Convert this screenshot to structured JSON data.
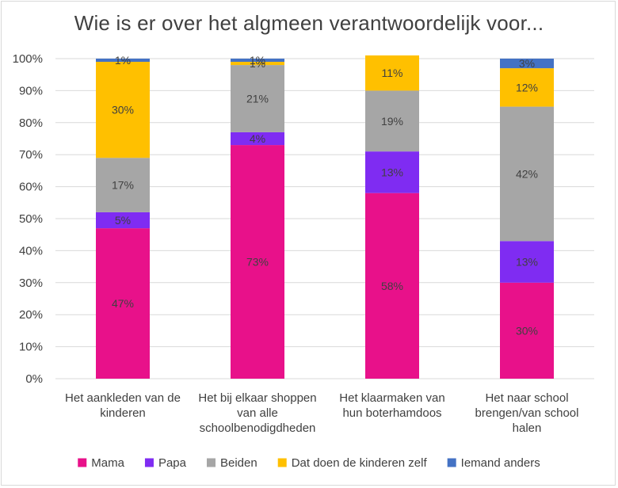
{
  "chart_data": {
    "type": "bar",
    "stacked": true,
    "title": "Wie is er over het algmeen verantwoordelijk voor...",
    "xlabel": "",
    "ylabel": "",
    "ylim": [
      0,
      100
    ],
    "y_ticks": [
      "0%",
      "10%",
      "20%",
      "30%",
      "40%",
      "50%",
      "60%",
      "70%",
      "80%",
      "90%",
      "100%"
    ],
    "grid": true,
    "legend_position": "bottom",
    "categories": [
      [
        "Het aankleden van de",
        "kinderen"
      ],
      [
        "Het bij elkaar shoppen",
        "van alle",
        "schoolbenodigdheden"
      ],
      [
        "Het klaarmaken van",
        "hun boterhamdoos"
      ],
      [
        "Het naar school",
        "brengen/van school",
        "halen"
      ]
    ],
    "series": [
      {
        "name": "Mama",
        "color": "#e8118a",
        "values": [
          47,
          73,
          58,
          30
        ],
        "labels": [
          "47%",
          "73%",
          "58%",
          "30%"
        ]
      },
      {
        "name": "Papa",
        "color": "#7f2cf2",
        "values": [
          5,
          4,
          13,
          13
        ],
        "labels": [
          "5%",
          "4%",
          "13%",
          "13%"
        ]
      },
      {
        "name": "Beiden",
        "color": "#a6a6a6",
        "values": [
          17,
          21,
          19,
          42
        ],
        "labels": [
          "17%",
          "21%",
          "19%",
          "42%"
        ]
      },
      {
        "name": "Dat doen de kinderen zelf",
        "color": "#ffc000",
        "values": [
          30,
          1,
          11,
          12
        ],
        "labels": [
          "30%",
          "1%",
          "11%",
          "12%"
        ]
      },
      {
        "name": "Iemand anders",
        "color": "#4472c4",
        "values": [
          1,
          1,
          0,
          3
        ],
        "labels": [
          "1%",
          "1%",
          "",
          "3%"
        ]
      }
    ]
  }
}
